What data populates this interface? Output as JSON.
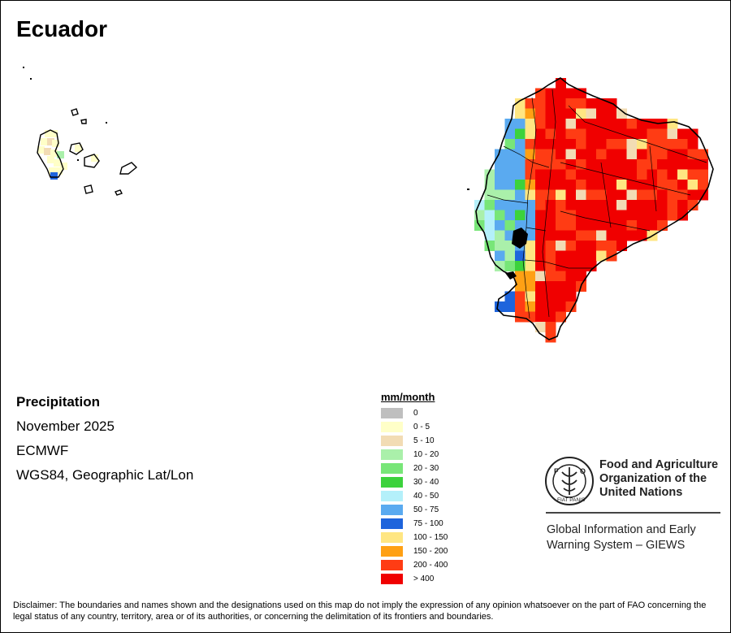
{
  "map": {
    "title": "Ecuador",
    "variable": "Precipitation",
    "period": "November 2025",
    "source": "ECMWF",
    "projection": "WGS84, Geographic Lat/Lon"
  },
  "legend": {
    "title": "mm/month",
    "classes": [
      {
        "label": "0",
        "color": "#bfbfbf"
      },
      {
        "label": "0 - 5",
        "color": "#ffffc8"
      },
      {
        "label": "5 - 10",
        "color": "#f2dcb4"
      },
      {
        "label": "10 - 20",
        "color": "#aaf0aa"
      },
      {
        "label": "20 - 30",
        "color": "#78e678"
      },
      {
        "label": "30 - 40",
        "color": "#3cd23c"
      },
      {
        "label": "40 - 50",
        "color": "#b4f0fa"
      },
      {
        "label": "50 - 75",
        "color": "#5aaaf0"
      },
      {
        "label": "75 - 100",
        "color": "#1e64dc"
      },
      {
        "label": "100 - 150",
        "color": "#ffe682"
      },
      {
        "label": "150 - 200",
        "color": "#ffa014"
      },
      {
        "label": "200 - 400",
        "color": "#ff3c14"
      },
      {
        "label": "> 400",
        "color": "#f00000"
      }
    ]
  },
  "branding": {
    "logo_text": "FIAT PANIS",
    "logo_mark": "FAO",
    "organization": [
      "Food and Agriculture",
      "Organization of the",
      "United Nations"
    ],
    "system": [
      "Global Information and Early",
      "Warning System – GIEWS"
    ]
  },
  "disclaimer": "Disclaimer: The boundaries and names shown and the designations used on this map do not imply the expression of any opinion whatsoever on the part of FAO concerning the legal status of any country, territory, area or of its authorities, or concerning the delimitation of its frontiers and boundaries."
}
